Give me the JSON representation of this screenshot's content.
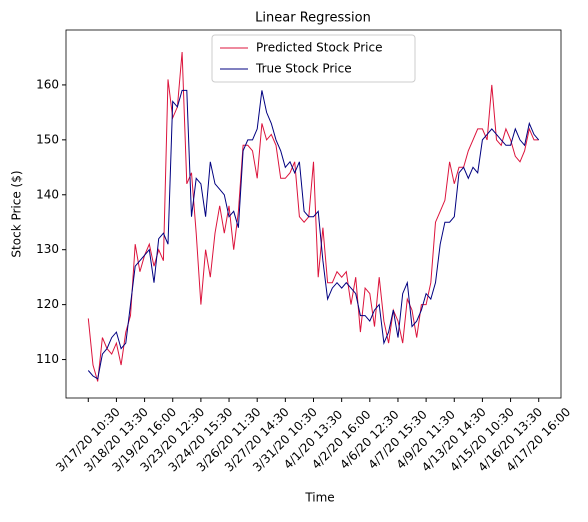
{
  "chart_data": {
    "type": "line",
    "title": "Linear Regression",
    "x_label": "Time",
    "y_label": "Stock Price ($)",
    "categories": [
      "3/17/20 10:30",
      null,
      null,
      null,
      null,
      null,
      "3/18/20 13:30",
      null,
      null,
      null,
      null,
      null,
      "3/19/20 16:00",
      null,
      null,
      null,
      null,
      null,
      "3/23/20 12:30",
      null,
      null,
      null,
      null,
      null,
      "3/24/20 15:30",
      null,
      null,
      null,
      null,
      null,
      "3/26/20 11:30",
      null,
      null,
      null,
      null,
      null,
      "3/27/20 14:30",
      null,
      null,
      null,
      null,
      null,
      "3/31/20 10:30",
      null,
      null,
      null,
      null,
      null,
      "4/1/20 13:30",
      null,
      null,
      null,
      null,
      null,
      "4/2/20 16:00",
      null,
      null,
      null,
      null,
      null,
      "4/6/20 12:30",
      null,
      null,
      null,
      null,
      null,
      "4/7/20 15:30",
      null,
      null,
      null,
      null,
      null,
      "4/9/20 11:30",
      null,
      null,
      null,
      null,
      null,
      "4/13/20 14:30",
      null,
      null,
      null,
      null,
      null,
      "4/15/20 10:30",
      null,
      null,
      null,
      null,
      null,
      "4/16/20 13:30",
      null,
      null,
      null,
      null,
      null,
      "4/17/20 16:00"
    ],
    "series": [
      {
        "name": "Predicted Stock Price",
        "color": "#dc143c",
        "values": [
          117.5,
          109,
          106,
          114,
          112,
          111,
          113,
          109,
          115,
          118,
          131,
          126,
          129,
          131,
          127,
          130,
          128,
          161,
          154,
          156,
          166,
          142,
          144,
          133,
          120,
          130,
          125,
          133,
          138,
          133,
          138,
          130,
          137,
          149,
          149,
          148,
          143,
          153,
          150,
          151,
          149,
          143,
          143,
          144,
          146,
          136,
          135,
          136,
          146,
          125,
          134,
          124,
          124,
          126,
          125,
          126,
          120,
          125,
          115,
          123,
          122,
          116,
          125,
          117,
          113,
          119,
          117,
          113,
          121,
          119,
          114,
          120,
          120,
          124,
          135,
          137,
          139,
          146,
          142,
          145,
          145,
          148,
          150,
          152,
          152,
          150,
          160,
          150,
          149,
          152,
          150,
          147,
          146,
          148,
          152,
          150,
          150
        ]
      },
      {
        "name": "True Stock Price",
        "color": "#000080",
        "values": [
          108,
          107,
          106.5,
          111,
          112,
          114,
          115,
          112,
          113,
          120,
          127,
          128,
          129,
          130,
          124,
          132,
          133,
          131,
          157,
          156,
          159,
          159,
          136,
          143,
          142,
          136,
          146,
          142,
          141,
          140,
          136,
          137,
          134,
          148,
          150,
          150,
          152,
          159,
          155,
          153,
          150,
          148,
          145,
          146,
          144,
          146,
          137,
          136,
          136,
          137,
          128,
          121,
          123,
          124,
          123,
          124,
          123,
          122,
          118,
          118,
          117,
          119,
          120,
          113,
          115,
          119,
          114,
          122,
          124,
          116,
          117,
          119,
          122,
          121,
          124,
          131,
          135,
          135,
          136,
          144,
          145,
          143,
          145,
          144,
          150,
          151,
          152,
          151,
          150,
          149,
          149,
          152,
          150,
          149,
          153,
          151,
          150
        ]
      }
    ],
    "ylim": [
      103,
      170
    ],
    "yticks": [
      110,
      120,
      130,
      140,
      150,
      160
    ],
    "legend": "upper center"
  }
}
